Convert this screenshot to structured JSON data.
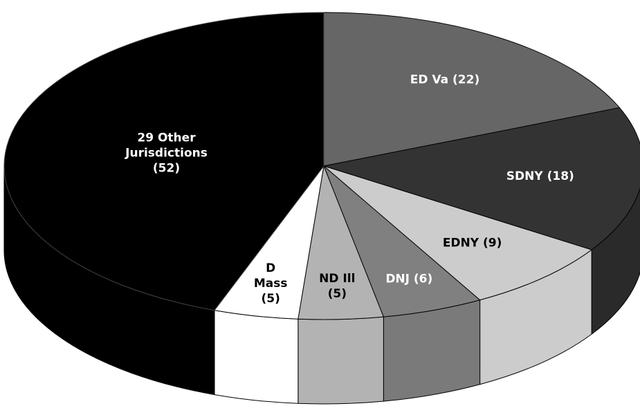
{
  "chart_data": {
    "type": "pie",
    "title": "",
    "categories": [
      "ED Va",
      "SDNY",
      "EDNY",
      "DNJ",
      "ND Ill",
      "D Mass",
      "29 Other Jurisdictions"
    ],
    "values": [
      22,
      18,
      9,
      6,
      5,
      5,
      52
    ],
    "slices": [
      {
        "name": "ED Va",
        "value": 22,
        "label": [
          "ED Va (22)"
        ],
        "color": "#666666",
        "side_color": "#555555",
        "text_color": "#ffffff"
      },
      {
        "name": "SDNY",
        "value": 18,
        "label": [
          "SDNY (18)"
        ],
        "color": "#333333",
        "side_color": "#2a2a2a",
        "text_color": "#ffffff"
      },
      {
        "name": "EDNY",
        "value": 9,
        "label": [
          "EDNY (9)"
        ],
        "color": "#cccccc",
        "side_color": "#cccccc",
        "text_color": "#000000"
      },
      {
        "name": "DNJ",
        "value": 6,
        "label": [
          "DNJ (6)"
        ],
        "color": "#808080",
        "side_color": "#7a7a7a",
        "text_color": "#ffffff"
      },
      {
        "name": "ND Ill",
        "value": 5,
        "label": [
          "ND Ill",
          "(5)"
        ],
        "color": "#b3b3b3",
        "side_color": "#b3b3b3",
        "text_color": "#000000"
      },
      {
        "name": "D Mass",
        "value": 5,
        "label": [
          "D",
          "Mass",
          "(5)"
        ],
        "color": "#ffffff",
        "side_color": "#ffffff",
        "text_color": "#000000"
      },
      {
        "name": "29 Other Jurisdictions",
        "value": 52,
        "label": [
          "29 Other",
          "Jurisdictions",
          "(52)"
        ],
        "color": "#000000",
        "side_color": "#000000",
        "text_color": "#ffffff"
      }
    ],
    "start_angle_deg": -90,
    "direction": "clockwise",
    "style": "3d",
    "legend": "none"
  }
}
